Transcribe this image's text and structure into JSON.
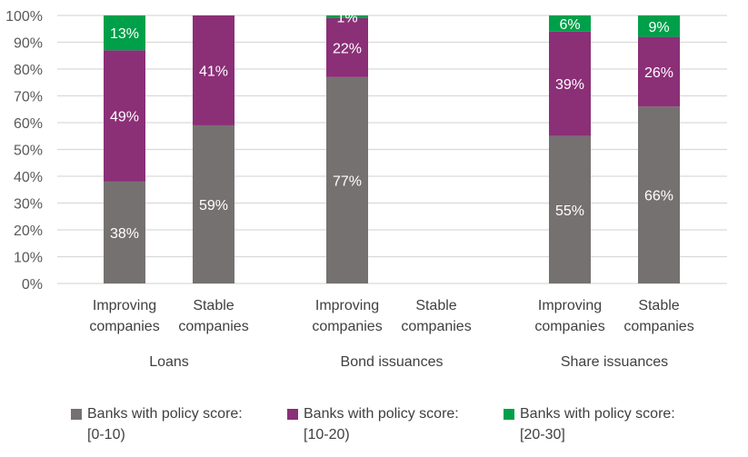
{
  "chart_data": {
    "type": "bar",
    "stacked": true,
    "title": "",
    "xlabel": "",
    "ylabel": "",
    "ylim": [
      0,
      100
    ],
    "yticks": [
      "0%",
      "10%",
      "20%",
      "30%",
      "40%",
      "50%",
      "60%",
      "70%",
      "80%",
      "90%",
      "100%"
    ],
    "grid": true,
    "groups": [
      {
        "label": "Loans",
        "categories": [
          "Improving companies",
          "Stable companies"
        ]
      },
      {
        "label": "Bond issuances",
        "categories": [
          "Improving companies",
          "Stable companies"
        ]
      },
      {
        "label": "Share issuances",
        "categories": [
          "Improving companies",
          "Stable companies"
        ]
      }
    ],
    "category_lines": [
      [
        "Improving",
        "companies"
      ],
      [
        "Stable",
        "companies"
      ]
    ],
    "series": [
      {
        "name": "Banks with policy score: [0-10)",
        "legend_lines": [
          "Banks with policy score:",
          "[0-10)"
        ],
        "color": "#767171",
        "values": [
          38,
          59,
          77,
          null,
          55,
          66
        ]
      },
      {
        "name": "Banks with policy score: [10-20)",
        "legend_lines": [
          "Banks with policy score:",
          "[10-20)"
        ],
        "color": "#8B2F77",
        "values": [
          49,
          41,
          22,
          null,
          39,
          26
        ]
      },
      {
        "name": "Banks with policy score: [20-30]",
        "legend_lines": [
          "Banks with policy score:",
          "[20-30]"
        ],
        "color": "#00A04A",
        "values": [
          13,
          null,
          1,
          null,
          6,
          9
        ]
      }
    ],
    "legend_position": "bottom"
  }
}
